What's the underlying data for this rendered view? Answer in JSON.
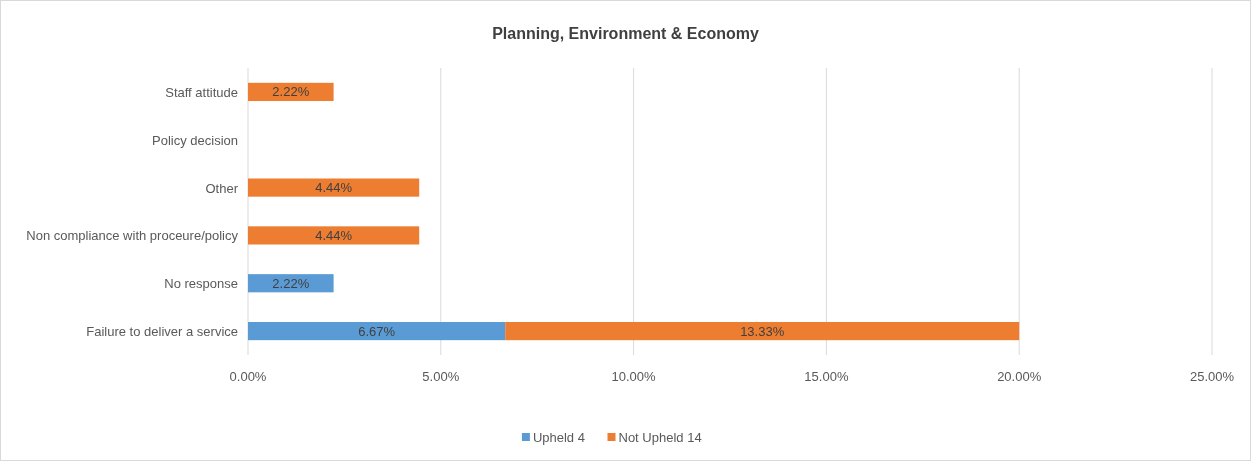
{
  "chart_data": {
    "type": "bar",
    "orientation": "horizontal",
    "stacked": true,
    "title": "Planning, Environment & Economy",
    "categories": [
      "Staff attitude",
      "Policy decision",
      "Other",
      "Non compliance with proceure/policy",
      "No response",
      "Failure to deliver a service"
    ],
    "series": [
      {
        "name": "Upheld 4",
        "color": "#5b9bd5",
        "values": [
          null,
          null,
          null,
          null,
          2.22,
          6.67
        ],
        "value_labels": [
          null,
          null,
          null,
          null,
          "2.22%",
          "6.67%"
        ]
      },
      {
        "name": "Not Upheld 14",
        "color": "#ed7d31",
        "values": [
          2.22,
          null,
          4.44,
          4.44,
          null,
          13.33
        ],
        "value_labels": [
          "2.22%",
          null,
          "4.44%",
          "4.44%",
          null,
          "13.33%"
        ]
      }
    ],
    "xlim": [
      0,
      25
    ],
    "xticks": [
      {
        "value": 0,
        "label": "0.00%"
      },
      {
        "value": 5,
        "label": "5.00%"
      },
      {
        "value": 10,
        "label": "10.00%"
      },
      {
        "value": 15,
        "label": "15.00%"
      },
      {
        "value": 20,
        "label": "20.00%"
      },
      {
        "value": 25,
        "label": "25.00%"
      }
    ],
    "grid": "x",
    "legend": "bottom"
  }
}
